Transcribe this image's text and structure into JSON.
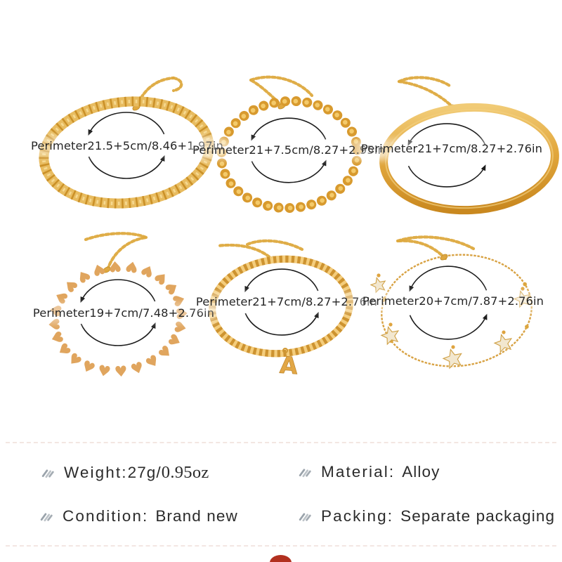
{
  "bracelets": [
    {
      "perimeter": "Perimeter21.5+5cm/8.46+1.97in"
    },
    {
      "perimeter": "Perimeter21+7.5cm/8.27+2.95in"
    },
    {
      "perimeter": "Perimeter21+7cm/8.27+2.76in"
    },
    {
      "perimeter": "Perimeter19+7cm/7.48+2.76in"
    },
    {
      "perimeter": "Perimeter21+7cm/8.27+2.76in"
    },
    {
      "perimeter": "Perimeter20+7cm/7.87+2.76in"
    }
  ],
  "specs": {
    "weight_label": "Weight:",
    "weight_value": "27g/",
    "weight_value_serif": "0.95oz",
    "material_label": "Material:",
    "material_value": "Alloy",
    "condition_label": "Condition:",
    "condition_value": "Brand new",
    "packing_label": "Packing:",
    "packing_value": "Separate packaging"
  },
  "colors": {
    "gold": "#dfa43f",
    "text_dark": "#262626",
    "spec_text": "#2b2b2b",
    "bullet_gray": "#9aa3ab",
    "divider": "#f0ded9",
    "red_accent": "#b2301f"
  },
  "icons": {
    "bullet": "stripes-bullet-icon",
    "rotation": "rotation-arrows"
  }
}
